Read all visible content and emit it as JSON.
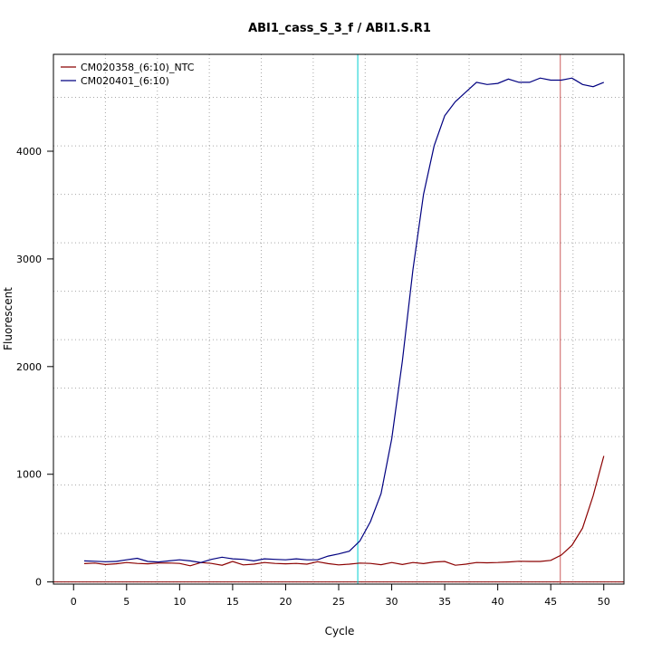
{
  "chart_data": {
    "type": "line",
    "title": "ABI1_cass_S_3_f / ABI1.S.R1",
    "xlabel": "Cycle",
    "ylabel": "Fluorescent",
    "xlim": [
      -1.9,
      51.9
    ],
    "ylim": [
      -20,
      4900
    ],
    "x_ticks": [
      0,
      5,
      10,
      15,
      20,
      25,
      30,
      35,
      40,
      45,
      50
    ],
    "y_ticks": [
      0,
      1000,
      2000,
      3000,
      4000
    ],
    "grid": true,
    "legend_position": "top-left",
    "series": [
      {
        "name": "CM020358_(6:10)_NTC",
        "color": "#8b0000",
        "x": [
          1,
          2,
          3,
          4,
          5,
          6,
          7,
          8,
          9,
          10,
          11,
          12,
          13,
          14,
          15,
          16,
          17,
          18,
          19,
          20,
          21,
          22,
          23,
          24,
          25,
          26,
          27,
          28,
          29,
          30,
          31,
          32,
          33,
          34,
          35,
          36,
          37,
          38,
          39,
          40,
          41,
          42,
          43,
          44,
          45,
          46,
          47,
          48,
          49,
          50
        ],
        "values": [
          170,
          175,
          162,
          168,
          180,
          172,
          168,
          175,
          176,
          172,
          150,
          180,
          172,
          155,
          190,
          158,
          165,
          180,
          172,
          168,
          172,
          165,
          188,
          170,
          158,
          165,
          175,
          172,
          160,
          180,
          162,
          180,
          170,
          185,
          190,
          155,
          165,
          180,
          178,
          180,
          185,
          192,
          190,
          190,
          200,
          250,
          340,
          500,
          800,
          1170
        ]
      },
      {
        "name": "CM020401_(6:10)",
        "color": "#000080",
        "x": [
          1,
          2,
          3,
          4,
          5,
          6,
          7,
          8,
          9,
          10,
          11,
          12,
          13,
          14,
          15,
          16,
          17,
          18,
          19,
          20,
          21,
          22,
          23,
          24,
          25,
          26,
          27,
          28,
          29,
          30,
          31,
          32,
          33,
          34,
          35,
          36,
          37,
          38,
          39,
          40,
          41,
          42,
          43,
          44,
          45,
          46,
          47,
          48,
          49,
          50
        ],
        "values": [
          195,
          192,
          188,
          190,
          205,
          220,
          190,
          185,
          195,
          205,
          195,
          180,
          210,
          230,
          215,
          210,
          195,
          215,
          210,
          205,
          215,
          205,
          205,
          240,
          260,
          285,
          380,
          560,
          820,
          1330,
          2050,
          2900,
          3600,
          4050,
          4330,
          4460,
          4550,
          4640,
          4620,
          4630,
          4670,
          4640,
          4640,
          4680,
          4660,
          4660,
          4680,
          4620,
          4600,
          4640
        ]
      }
    ],
    "threshold_lines": {
      "horizontal": {
        "y": 0,
        "color": "#8b0000"
      },
      "vertical": [
        {
          "x": 26.8,
          "color": "#00ced1"
        },
        {
          "x": 45.9,
          "color": "#cd5c5c"
        }
      ]
    }
  }
}
